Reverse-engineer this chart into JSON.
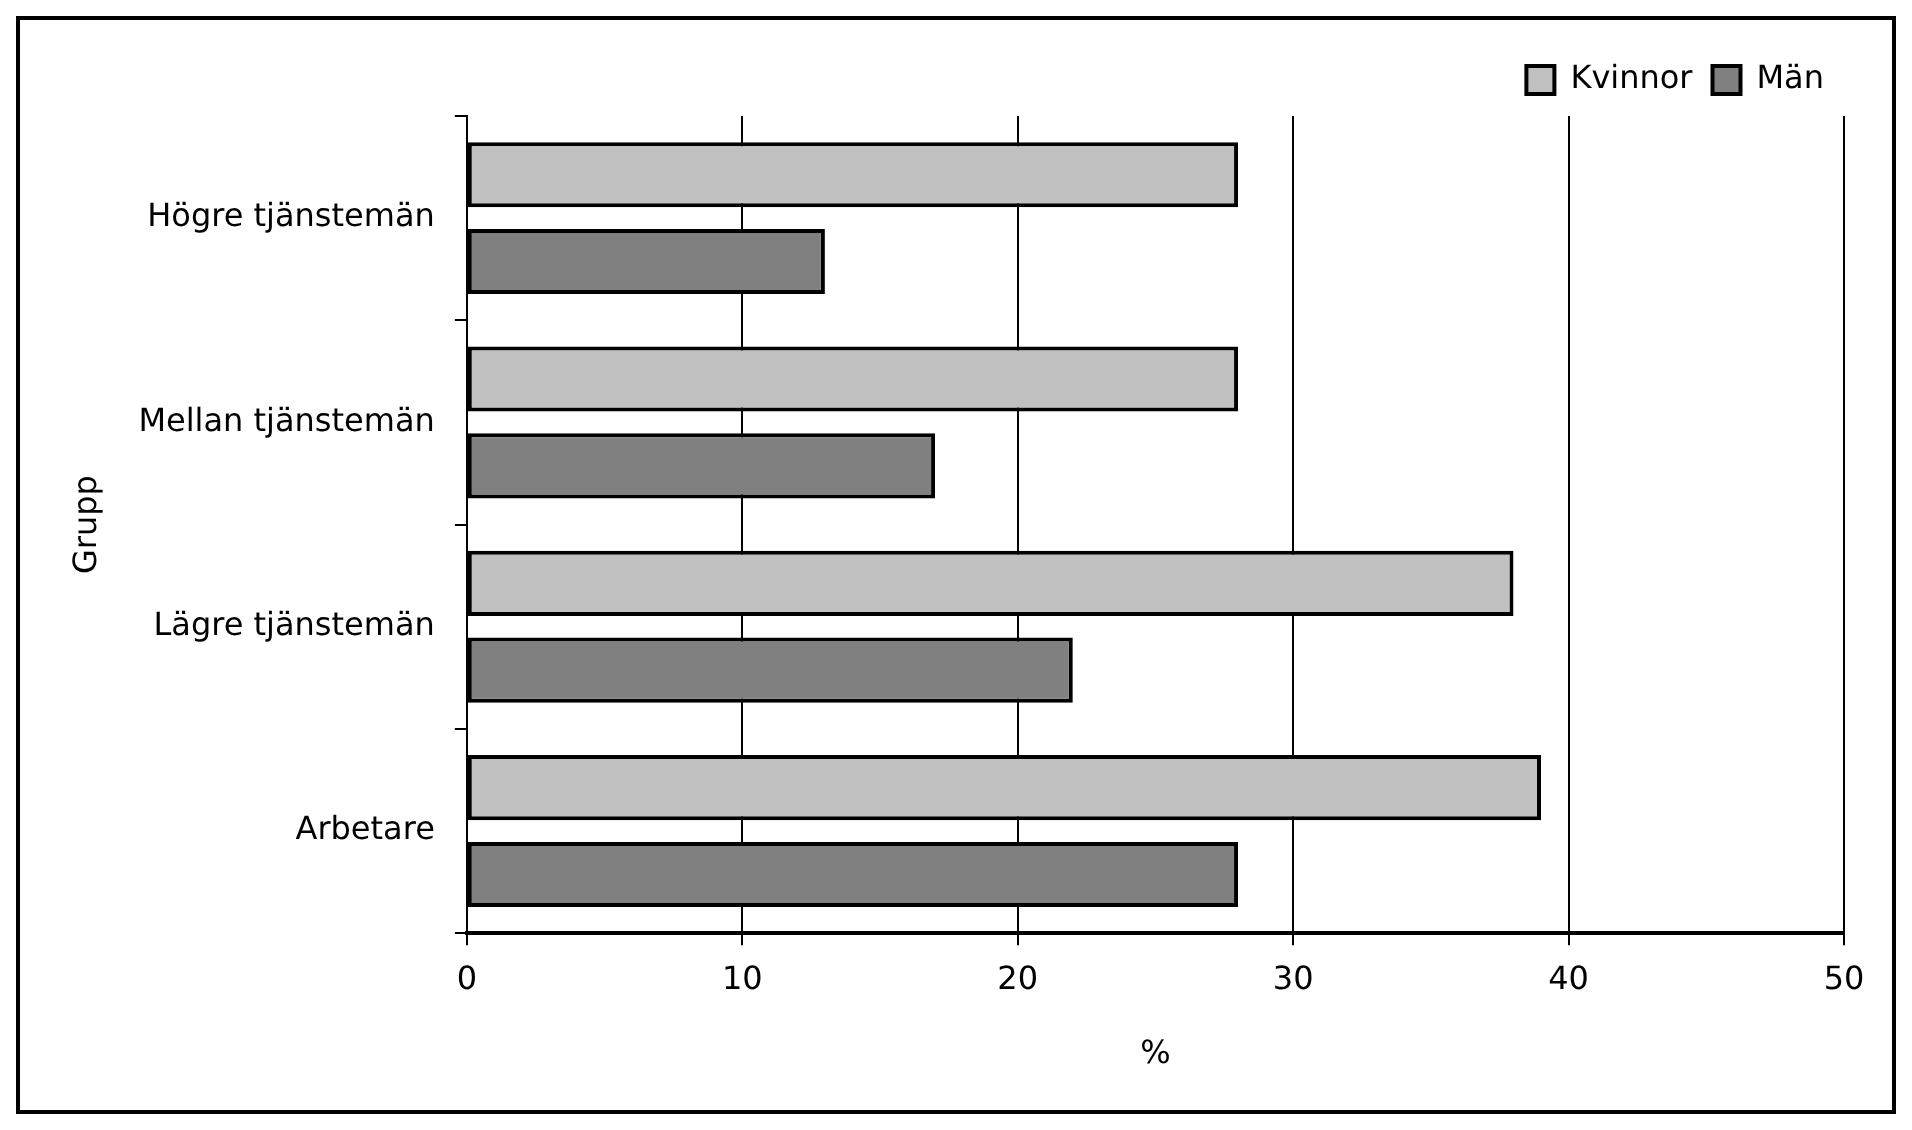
{
  "chart_data": {
    "type": "bar",
    "orientation": "horizontal",
    "xlabel": "%",
    "ylabel": "Grupp",
    "categories": [
      "Högre tjänstemän",
      "Mellan tjänstemän",
      "Lägre tjänstemän",
      "Arbetare"
    ],
    "series": [
      {
        "name": "Kvinnor",
        "color": "#c0c0c0",
        "values": [
          28,
          28,
          38,
          39
        ]
      },
      {
        "name": "Män",
        "color": "#808080",
        "values": [
          13,
          17,
          22,
          28
        ]
      }
    ],
    "xlim": [
      0,
      50
    ],
    "xticks": [
      0,
      10,
      20,
      30,
      40,
      50
    ],
    "grid": "x",
    "legend": "top right"
  }
}
